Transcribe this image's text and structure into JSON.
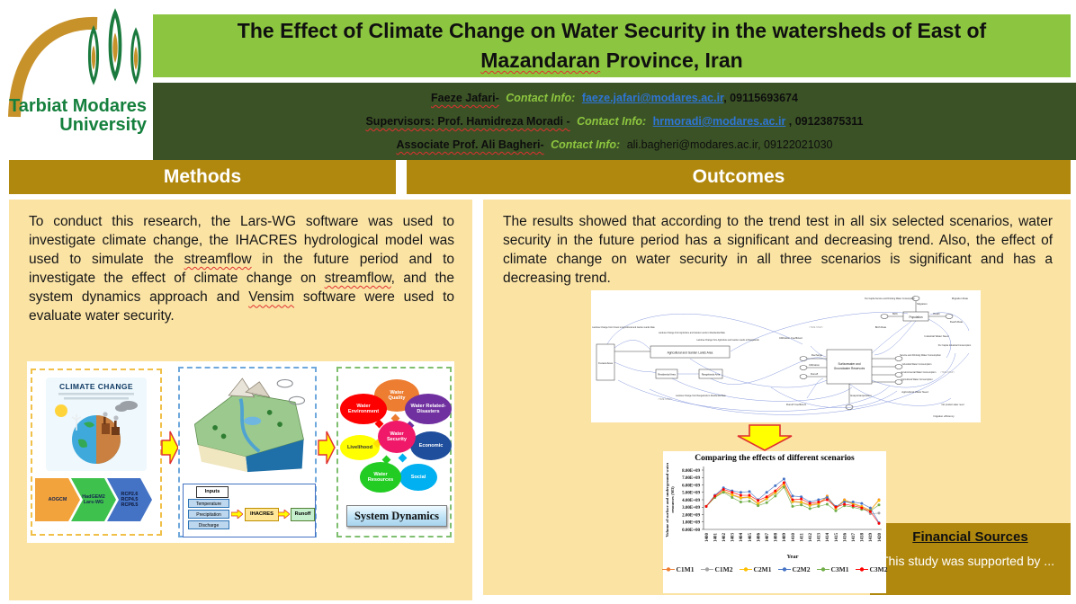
{
  "logo": {
    "line1": "Tarbiat Modares",
    "line2": "University"
  },
  "title": {
    "part1": "The Effect of Climate Change on Water Security in the watersheds of  East of",
    "wavy": "Mazandaran",
    "part2": " Province, Iran"
  },
  "authors": [
    {
      "name": "Faeze  Jafari-",
      "contact_label": "Contact Info:",
      "email": "faeze.jafari@modares.ac.ir",
      "tail": ", 09115693674"
    },
    {
      "name": "Supervisors: Prof. Hamidreza Moradi -",
      "contact_label": "Contact Info:",
      "email": "hrmoradi@modares.ac.ir",
      "tail": " , 09123875311"
    },
    {
      "name": "Associate Prof. Ali Bagheri-",
      "contact_label": "Contact Info:",
      "email": "ali.bagheri@modares.ac.ir, 09122021030",
      "tail": ""
    }
  ],
  "sections": {
    "methods": {
      "header": "Methods",
      "paragraph": {
        "p1": "To conduct this research, the Lars-WG software was used to investigate climate change, the IHACRES hydrological model was used to simulate the ",
        "w1": "streamflow",
        "p2": " in the future period and to investigate the effect of climate change on ",
        "w2": "streamflow",
        "p3": ", and the system dynamics approach and ",
        "w3": "Vensim",
        "p4": " software were used to evaluate water security."
      }
    },
    "outcomes": {
      "header": "Outcomes",
      "paragraph": "The results showed that according to the trend test in all six selected scenarios, water security in the future period has a significant and decreasing trend. Also, the effect of climate change on water security in all three scenarios is significant and has a decreasing trend."
    }
  },
  "methods_diagram": {
    "panel1": {
      "card_title": "CLIMATE CHANGE",
      "chevrons": [
        {
          "label": "AOGCM",
          "color": "#F2A33C"
        },
        {
          "label": "HadGEM2\nLars-WG",
          "color": "#3FC24D"
        },
        {
          "label": "RCP2.6\nRCP4.5\nRCP8.5",
          "color": "#4472C4"
        }
      ]
    },
    "panel2": {
      "inputs_label": "Inputs",
      "inputs": [
        "Temperature",
        "Precipitation",
        "Discharge"
      ],
      "model": "IHACRES",
      "output": "Runoff"
    },
    "panel3": {
      "center": {
        "label": "Water\nSecurity",
        "color": "#F01868"
      },
      "ovals": [
        {
          "label": "Water\nQuality",
          "color": "#ED7D31",
          "text": "#fff"
        },
        {
          "label": "Water Related-\nDisasters",
          "color": "#7030A0",
          "text": "#fff"
        },
        {
          "label": "Economic",
          "color": "#1F4E9C",
          "text": "#fff"
        },
        {
          "label": "Social",
          "color": "#00B0F0",
          "text": "#fff"
        },
        {
          "label": "Water\nResources",
          "color": "#22CC22",
          "text": "#fff"
        },
        {
          "label": "Livelihood",
          "color": "#FFFF00",
          "text": "#333"
        },
        {
          "label": "Water\nEnvironment",
          "color": "#FF0000",
          "text": "#fff"
        }
      ],
      "button": "System Dynamics"
    }
  },
  "vensim": {
    "forest": "Forest Area",
    "agri": "Agricultural and Garden Lands Area",
    "residential": "Residential Area",
    "rangelands": "Rangelands Area",
    "reservoir_l1": "Surfacewater and",
    "reservoir_l2": "Groundwater Reservoirs",
    "population": "Population",
    "time_step": "<TIME STEP>",
    "labels": [
      "Recharge",
      "Infiltration",
      "Runoff",
      "Service and Drinking Water Consumption",
      "Industrial Water Consumption",
      "Environmental Water Consumption",
      "Agricultural Water Consumption",
      "Evapotranspiration",
      "Birth",
      "Death",
      "Migration",
      "Migration Rate",
      "Death Rate",
      "Birth Rate",
      "Runoff Coefficient",
      "Infiltration Coefficient",
      "Irrigation efficiency",
      "Agricultural Water Need",
      "Industrial Water Need",
      "Per Capita Industrial Consumption",
      "Per Capita Service and Drinking Water Consumption",
      "Landuse Change from Forest to Agricultural and Garden Lands Rate",
      "Landuse Change from Agriculture and Garden Lands to Residential Rate",
      "Landuse Change from Agriculture and Garden Lands to Rangelands",
      "Landuse Change from Rangelands to Residential Rate",
      "Net product water need"
    ]
  },
  "chart_data": {
    "type": "line",
    "title": "Comparing the effects of different scenarios",
    "xlabel": "Year",
    "ylabel": "Volume of surface and underground water resources (M3)",
    "ylabel_lines": [
      "Volume of surface and underground water",
      "resources (M3)"
    ],
    "value_unit": "1e9 M3",
    "ylim": [
      0,
      8
    ],
    "grid": false,
    "legend_position": "bottom",
    "x": [
      "1400",
      "1401",
      "1402",
      "1403",
      "1404",
      "1405",
      "1406",
      "1407",
      "1408",
      "1409",
      "1410",
      "1411",
      "1412",
      "1413",
      "1414",
      "1415",
      "1416",
      "1417",
      "1418",
      "1419",
      "1420"
    ],
    "series": [
      {
        "name": "C1M1",
        "color": "#ED7D31",
        "values": [
          3.1,
          4.4,
          5.2,
          4.7,
          4.3,
          4.4,
          3.5,
          4.2,
          5.0,
          6.0,
          3.8,
          3.7,
          3.3,
          3.5,
          4.5,
          2.9,
          4.0,
          3.5,
          3.1,
          2.6,
          4.0
        ]
      },
      {
        "name": "C1M2",
        "color": "#A5A5A5",
        "values": [
          3.1,
          4.3,
          5.1,
          4.6,
          4.2,
          4.3,
          3.4,
          4.1,
          4.9,
          5.9,
          3.7,
          3.6,
          3.2,
          3.4,
          4.3,
          2.8,
          3.8,
          3.4,
          3.0,
          2.1,
          2.2
        ]
      },
      {
        "name": "C2M1",
        "color": "#FFC000",
        "values": [
          3.1,
          4.35,
          5.15,
          4.65,
          4.25,
          4.35,
          3.45,
          4.15,
          4.95,
          5.95,
          3.75,
          3.65,
          3.25,
          3.45,
          4.4,
          2.85,
          3.9,
          3.45,
          3.05,
          2.55,
          3.9
        ]
      },
      {
        "name": "C2M2",
        "color": "#4472C4",
        "values": [
          3.1,
          4.6,
          5.6,
          5.2,
          5.0,
          5.1,
          4.0,
          5.0,
          5.9,
          6.8,
          4.5,
          4.4,
          3.7,
          4.0,
          4.3,
          3.1,
          3.7,
          3.7,
          3.5,
          2.9,
          0.9
        ]
      },
      {
        "name": "C3M1",
        "color": "#70AD47",
        "values": [
          3.1,
          4.3,
          5.0,
          4.3,
          3.7,
          3.8,
          3.2,
          3.6,
          4.5,
          5.7,
          3.1,
          3.3,
          2.8,
          3.1,
          3.4,
          2.5,
          3.2,
          3.0,
          2.7,
          2.5,
          3.3
        ]
      },
      {
        "name": "C3M2",
        "color": "#FF0000",
        "values": [
          3.1,
          4.5,
          5.4,
          5.0,
          4.6,
          4.6,
          3.9,
          4.4,
          5.2,
          6.3,
          4.0,
          4.1,
          3.5,
          3.7,
          4.0,
          3.0,
          3.4,
          3.2,
          2.9,
          2.4,
          0.8
        ]
      }
    ]
  },
  "financial": {
    "header": "Financial Sources",
    "text": "This study was supported by ..."
  }
}
